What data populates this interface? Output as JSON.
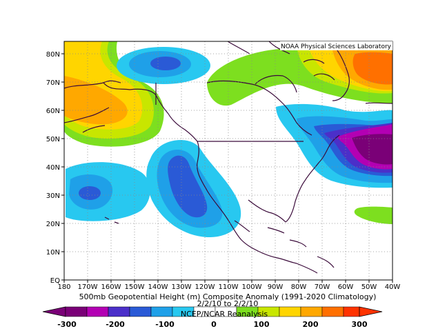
{
  "credit": "NOAA Physical Sciences Laboratory",
  "caption": {
    "line1": "500mb Geopotential Height (m) Composite Anomaly (1991-2020 Climatology)",
    "line2": "2/2/10  to  2/2/10",
    "line3": "NCEP/NCAR Reanalysis"
  },
  "axes": {
    "lon_labels": [
      "180",
      "170W",
      "160W",
      "150W",
      "140W",
      "130W",
      "120W",
      "110W",
      "100W",
      "90W",
      "80W",
      "70W",
      "60W",
      "50W",
      "40W"
    ],
    "lat_labels": [
      "EQ",
      "10N",
      "20N",
      "30N",
      "40N",
      "50N",
      "60N",
      "70N",
      "80N"
    ],
    "lon_range": [
      -180,
      -40
    ],
    "lat_range": [
      0,
      85
    ],
    "grid": true
  },
  "colorbar": {
    "labels": [
      "-300",
      "-200",
      "-100",
      "0",
      "100",
      "200",
      "300"
    ],
    "colors": [
      "#7a0077",
      "#b300b3",
      "#4b2fc9",
      "#2a5ad6",
      "#1fa0e8",
      "#28c8f0",
      "#ffffff",
      "#ffffff",
      "#7ddf1f",
      "#c8e600",
      "#ffd500",
      "#ffa800",
      "#ff7000",
      "#ff3300"
    ]
  },
  "chart_data": {
    "type": "heatmap",
    "variable": "500mb Geopotential Height (m) Composite Anomaly",
    "units": "m",
    "anomaly_centers": [
      {
        "lon": -135,
        "lat": 77,
        "value": -180
      },
      {
        "lon": -128,
        "lat": 35,
        "value": -180
      },
      {
        "lon": -167,
        "lat": 31,
        "value": -130
      },
      {
        "lon": -45,
        "lat": 48,
        "value": -280
      },
      {
        "lon": -160,
        "lat": 62,
        "value": 190
      },
      {
        "lon": -45,
        "lat": 73,
        "value": 240
      },
      {
        "lon": -100,
        "lat": 73,
        "value": 60
      }
    ]
  }
}
